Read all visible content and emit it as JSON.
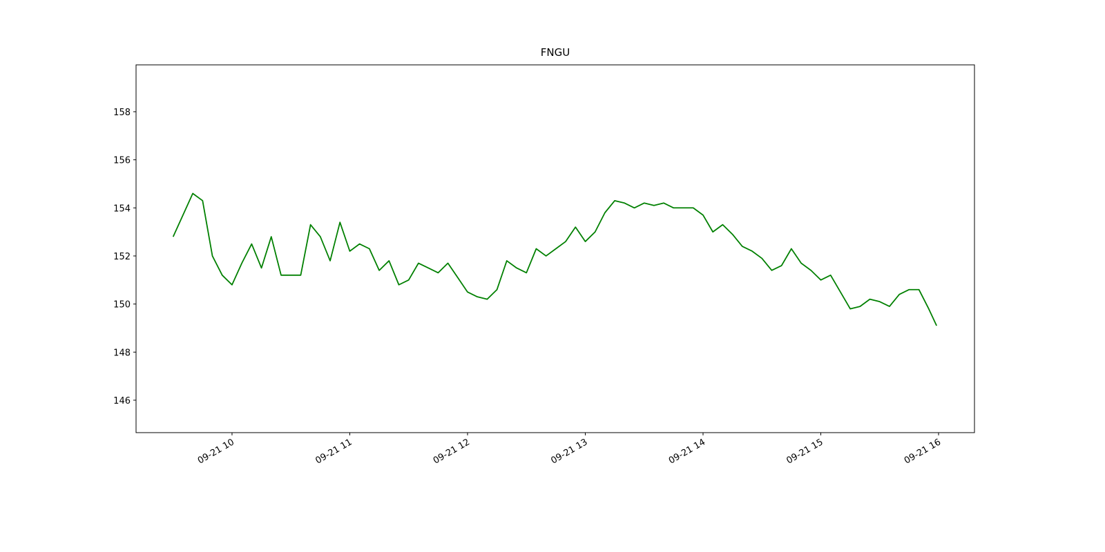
{
  "chart_data": {
    "type": "line",
    "title": "FNGU",
    "x": [
      9.5,
      9.5833,
      9.6667,
      9.75,
      9.8333,
      9.9167,
      10,
      10.0833,
      10.1667,
      10.25,
      10.3333,
      10.4167,
      10.5,
      10.5833,
      10.6667,
      10.75,
      10.8333,
      10.9167,
      11,
      11.0833,
      11.1667,
      11.25,
      11.3333,
      11.4167,
      11.5,
      11.5833,
      11.6667,
      11.75,
      11.8333,
      11.9167,
      12,
      12.0833,
      12.1667,
      12.25,
      12.3333,
      12.4167,
      12.5,
      12.5833,
      12.6667,
      12.75,
      12.8333,
      12.9167,
      13,
      13.0833,
      13.1667,
      13.25,
      13.3333,
      13.4167,
      13.5,
      13.5833,
      13.6667,
      13.75,
      13.8333,
      13.9167,
      14,
      14.0833,
      14.1667,
      14.25,
      14.3333,
      14.4167,
      14.5,
      14.5833,
      14.6667,
      14.75,
      14.8333,
      14.9167,
      15,
      15.0833,
      15.1667,
      15.25,
      15.3333,
      15.4167,
      15.5,
      15.5833,
      15.6667,
      15.75,
      15.8333,
      15.9167,
      15.9833
    ],
    "series": [
      {
        "name": "FNGU",
        "color": "#008000",
        "values": [
          152.8,
          153.7,
          154.6,
          154.3,
          152.0,
          151.2,
          150.8,
          151.7,
          152.5,
          151.5,
          152.8,
          151.2,
          151.2,
          151.2,
          153.3,
          152.8,
          151.8,
          153.4,
          152.2,
          152.5,
          152.3,
          151.4,
          151.8,
          150.8,
          151.0,
          151.7,
          151.5,
          151.3,
          151.7,
          151.1,
          150.5,
          150.3,
          150.2,
          150.6,
          151.8,
          151.5,
          151.3,
          152.3,
          152.0,
          152.3,
          152.6,
          153.2,
          152.6,
          153.0,
          153.8,
          154.3,
          154.2,
          154.0,
          154.2,
          154.1,
          154.2,
          154.0,
          154.0,
          154.0,
          153.7,
          153.0,
          153.3,
          152.9,
          152.4,
          152.2,
          151.9,
          151.4,
          151.6,
          152.3,
          151.7,
          151.4,
          151.0,
          151.2,
          150.5,
          149.8,
          149.9,
          150.2,
          150.1,
          149.9,
          150.4,
          150.6,
          150.6,
          149.8,
          149.1
        ]
      }
    ],
    "xlim": [
      9.185,
      16.305
    ],
    "xticks": [
      {
        "value": 10,
        "label": "09-21 10"
      },
      {
        "value": 11,
        "label": "09-21 11"
      },
      {
        "value": 12,
        "label": "09-21 12"
      },
      {
        "value": 13,
        "label": "09-21 13"
      },
      {
        "value": 14,
        "label": "09-21 14"
      },
      {
        "value": 15,
        "label": "09-21 15"
      },
      {
        "value": 16,
        "label": "09-21 16"
      }
    ],
    "ylim": [
      144.65,
      159.95
    ],
    "yticks": [
      146,
      148,
      150,
      152,
      154,
      156,
      158
    ]
  }
}
